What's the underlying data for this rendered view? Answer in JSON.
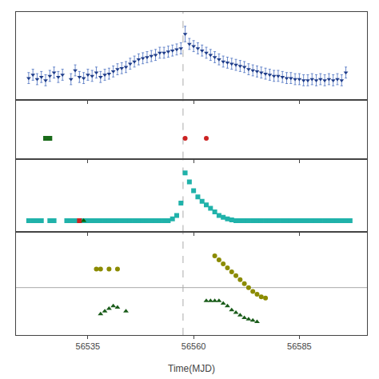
{
  "chart_data": [
    {
      "type": "scatter",
      "xlim": [
        56518,
        56601
      ],
      "xticks": [
        56535,
        56560,
        56585
      ],
      "ylim": [
        0.18,
        0.98
      ],
      "grid": false,
      "tick_labels": false,
      "vline": 56557.5,
      "series": [
        {
          "color": "#1f3d8a",
          "error_color": "#4a70c0",
          "marker": "triangle-down",
          "x": [
            56521,
            56522,
            56523,
            56524,
            56525,
            56526,
            56527,
            56528,
            56529,
            56531,
            56532,
            56533,
            56534,
            56535,
            56536,
            56537,
            56538,
            56539,
            56540,
            56541,
            56542,
            56543,
            56544,
            56545,
            56546,
            56547,
            56548,
            56549,
            56550,
            56551,
            56552,
            56553,
            56554,
            56555,
            56556,
            56557,
            56558,
            56559,
            56560,
            56561,
            56562,
            56563,
            56564,
            56565,
            56566,
            56567,
            56568,
            56569,
            56570,
            56571,
            56572,
            56573,
            56574,
            56575,
            56576,
            56577,
            56578,
            56579,
            56580,
            56581,
            56582,
            56583,
            56584,
            56585,
            56586,
            56587,
            56588,
            56589,
            56590,
            56591,
            56592,
            56593,
            56594,
            56595,
            56596
          ],
          "values": [
            0.38,
            0.41,
            0.37,
            0.39,
            0.36,
            0.4,
            0.43,
            0.39,
            0.41,
            0.37,
            0.45,
            0.39,
            0.38,
            0.41,
            0.4,
            0.43,
            0.39,
            0.41,
            0.42,
            0.44,
            0.46,
            0.47,
            0.48,
            0.51,
            0.53,
            0.55,
            0.56,
            0.57,
            0.58,
            0.59,
            0.61,
            0.61,
            0.62,
            0.63,
            0.64,
            0.65,
            0.78,
            0.69,
            0.67,
            0.65,
            0.63,
            0.61,
            0.59,
            0.57,
            0.55,
            0.53,
            0.52,
            0.51,
            0.5,
            0.49,
            0.48,
            0.46,
            0.45,
            0.44,
            0.43,
            0.42,
            0.41,
            0.4,
            0.4,
            0.39,
            0.38,
            0.38,
            0.37,
            0.37,
            0.36,
            0.36,
            0.37,
            0.36,
            0.37,
            0.36,
            0.37,
            0.36,
            0.37,
            0.36,
            0.43
          ],
          "error": [
            0.05,
            0.05,
            0.05,
            0.05,
            0.05,
            0.05,
            0.05,
            0.05,
            0.05,
            0.05,
            0.05,
            0.05,
            0.05,
            0.05,
            0.05,
            0.05,
            0.05,
            0.05,
            0.05,
            0.05,
            0.05,
            0.05,
            0.05,
            0.05,
            0.05,
            0.05,
            0.05,
            0.05,
            0.05,
            0.05,
            0.05,
            0.05,
            0.05,
            0.05,
            0.05,
            0.05,
            0.07,
            0.05,
            0.05,
            0.05,
            0.05,
            0.05,
            0.05,
            0.05,
            0.05,
            0.05,
            0.05,
            0.05,
            0.05,
            0.05,
            0.05,
            0.05,
            0.05,
            0.05,
            0.05,
            0.05,
            0.05,
            0.05,
            0.05,
            0.05,
            0.05,
            0.05,
            0.05,
            0.05,
            0.05,
            0.05,
            0.05,
            0.05,
            0.05,
            0.05,
            0.05,
            0.05,
            0.05,
            0.05,
            0.05
          ]
        }
      ]
    },
    {
      "type": "scatter",
      "xlim": [
        56518,
        56601
      ],
      "xticks": [
        56535,
        56560,
        56585
      ],
      "ylim": [
        0.0,
        1.0
      ],
      "grid": false,
      "tick_labels": false,
      "vline": 56557.5,
      "series": [
        {
          "color": "#1a6b1a",
          "marker": "square",
          "x": [
            56525,
            56526
          ],
          "values": [
            0.35,
            0.35
          ]
        },
        {
          "color": "#cc2222",
          "marker": "circle",
          "x": [
            56558,
            56563
          ],
          "values": [
            0.35,
            0.35
          ]
        }
      ]
    },
    {
      "type": "scatter",
      "xlim": [
        56518,
        56601
      ],
      "xticks": [
        56535,
        56560,
        56585
      ],
      "ylim": [
        0.05,
        0.88
      ],
      "grid": false,
      "tick_labels": false,
      "vline": 56557.5,
      "series": [
        {
          "color": "#20b2aa",
          "marker": "square",
          "x": [
            56521,
            56522,
            56523,
            56524,
            56526,
            56527,
            56530,
            56531,
            56532,
            56534,
            56535,
            56536,
            56537,
            56538,
            56539,
            56540,
            56541,
            56542,
            56543,
            56544,
            56545,
            56546,
            56547,
            56548,
            56549,
            56550,
            56551,
            56552,
            56553,
            56554,
            56555,
            56556,
            56557,
            56558,
            56559,
            56560,
            56561,
            56562,
            56563,
            56564,
            56565,
            56566,
            56567,
            56568,
            56569,
            56570,
            56571,
            56572,
            56573,
            56574,
            56575,
            56576,
            56577,
            56578,
            56579,
            56580,
            56581,
            56582,
            56583,
            56584,
            56585,
            56586,
            56587,
            56588,
            56589,
            56590,
            56591,
            56592,
            56593,
            56594,
            56595,
            56596,
            56597
          ],
          "values": [
            0.18,
            0.18,
            0.18,
            0.18,
            0.18,
            0.18,
            0.18,
            0.18,
            0.18,
            0.18,
            0.18,
            0.18,
            0.18,
            0.18,
            0.18,
            0.18,
            0.18,
            0.18,
            0.18,
            0.18,
            0.18,
            0.18,
            0.18,
            0.18,
            0.18,
            0.18,
            0.18,
            0.18,
            0.18,
            0.18,
            0.2,
            0.24,
            0.38,
            0.72,
            0.62,
            0.52,
            0.45,
            0.4,
            0.36,
            0.32,
            0.28,
            0.24,
            0.22,
            0.2,
            0.19,
            0.18,
            0.18,
            0.18,
            0.18,
            0.18,
            0.18,
            0.18,
            0.18,
            0.18,
            0.18,
            0.18,
            0.18,
            0.18,
            0.18,
            0.18,
            0.18,
            0.18,
            0.18,
            0.18,
            0.18,
            0.18,
            0.18,
            0.18,
            0.18,
            0.18,
            0.18,
            0.18,
            0.18
          ]
        },
        {
          "color": "#cc2222",
          "marker": "square",
          "x": [
            56533
          ],
          "values": [
            0.18
          ]
        },
        {
          "color": "#006400",
          "marker": "triangle-up",
          "x": [
            56534
          ],
          "values": [
            0.18
          ]
        }
      ]
    },
    {
      "type": "scatter",
      "xlim": [
        56518,
        56601
      ],
      "xticks": [
        56535,
        56560,
        56585
      ],
      "ylim": [
        0.22,
        1.0
      ],
      "grid": false,
      "tick_labels": "x",
      "vline": 56557.5,
      "hline": 0.58,
      "x_label": "Time(MJD)",
      "series": [
        {
          "color": "#8b8b00",
          "marker": "circle",
          "x": [
            56537,
            56538,
            56540,
            56542,
            56565,
            56566,
            56567,
            56568,
            56569,
            56570,
            56571,
            56572,
            56573,
            56574,
            56575,
            56576,
            56577
          ],
          "values": [
            0.72,
            0.72,
            0.72,
            0.72,
            0.82,
            0.79,
            0.76,
            0.73,
            0.7,
            0.67,
            0.64,
            0.61,
            0.58,
            0.55,
            0.53,
            0.51,
            0.5
          ]
        },
        {
          "color": "#1a5c1a",
          "marker": "triangle-up",
          "x": [
            56538,
            56539,
            56540,
            56541,
            56542,
            56544,
            56563,
            56564,
            56565,
            56566,
            56567,
            56568,
            56569,
            56570,
            56571,
            56572,
            56573,
            56574,
            56575
          ],
          "values": [
            0.38,
            0.4,
            0.42,
            0.44,
            0.43,
            0.4,
            0.48,
            0.48,
            0.48,
            0.48,
            0.46,
            0.44,
            0.41,
            0.39,
            0.37,
            0.35,
            0.34,
            0.33,
            0.32
          ]
        }
      ]
    }
  ]
}
